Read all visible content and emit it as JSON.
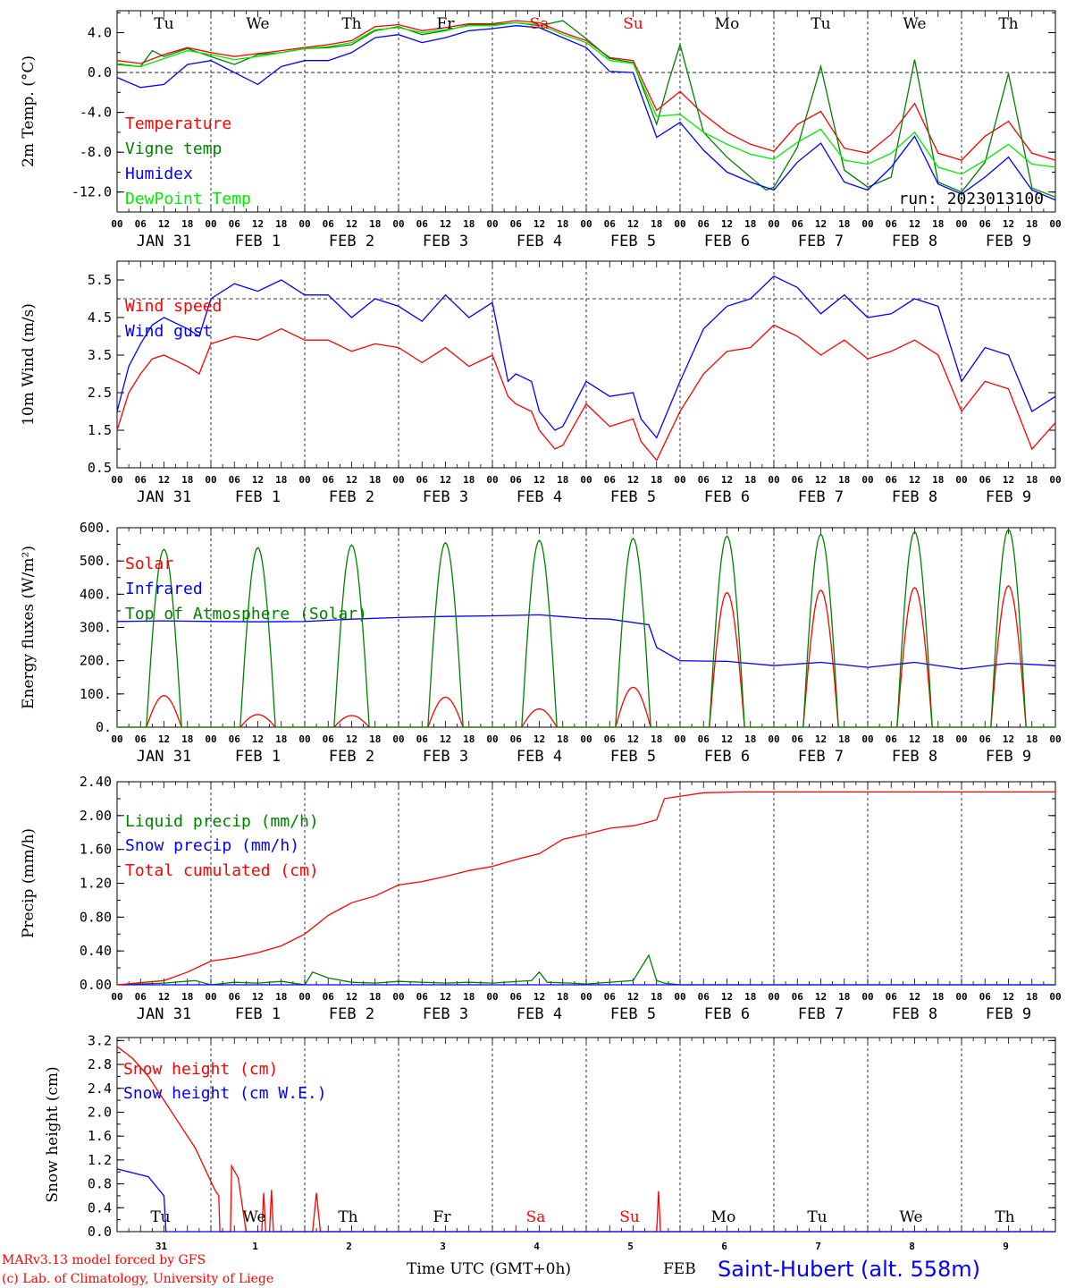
{
  "footer": {
    "model_line": "MARv3.13 model forced by GFS",
    "copyright_line": "(c) Lab. of Climatology, University of Liege",
    "time_axis_label": "Time UTC (GMT+0h)",
    "month_label": "FEB",
    "station": "Saint-Hubert (alt. 558m)"
  },
  "run_label": "run: 2023013100",
  "day_names": [
    "Tu",
    "We",
    "Th",
    "Fr",
    "Sa",
    "Su",
    "Mo",
    "Tu",
    "We",
    "Th"
  ],
  "weekend_color": "#ff0000",
  "hour_ticks": [
    "00",
    "06",
    "12",
    "18"
  ],
  "date_labels": [
    "JAN 31",
    "FEB  1",
    "FEB  2",
    "FEB  3",
    "FEB  4",
    "FEB  5",
    "FEB  6",
    "FEB  7",
    "FEB  8",
    "FEB  9"
  ],
  "bottom_day_numbers": [
    "31",
    "1",
    "2",
    "3",
    "4",
    "5",
    "6",
    "7",
    "8",
    "9"
  ],
  "chart_data": [
    {
      "type": "line",
      "ylabel": "2m Temp. (°C)",
      "ylim": [
        -14,
        6.2
      ],
      "yticks": [
        "4.0",
        "0.0",
        "-4.0",
        "-8.0",
        "-12.0"
      ],
      "ytick_values": [
        4,
        0,
        -4,
        -8,
        -12
      ],
      "ref_line": 0,
      "x_unit": "hours from 2023-01-31 00 UTC",
      "xlim": [
        0,
        240
      ],
      "series": [
        {
          "name": "Temperature",
          "color": "#ff0000",
          "x": [
            0,
            6,
            12,
            18,
            24,
            30,
            36,
            42,
            48,
            54,
            60,
            66,
            72,
            78,
            84,
            90,
            96,
            102,
            108,
            114,
            120,
            126,
            132,
            138,
            144,
            150,
            156,
            162,
            168,
            174,
            180,
            186,
            192,
            198,
            204,
            210,
            216,
            222,
            228,
            234,
            240
          ],
          "values": [
            1.2,
            0.9,
            1.8,
            2.5,
            2.0,
            1.6,
            1.9,
            2.2,
            2.5,
            2.8,
            3.2,
            4.6,
            4.8,
            4.2,
            4.5,
            4.9,
            4.9,
            5.2,
            5.0,
            4.0,
            3.2,
            1.5,
            1.2,
            -3.8,
            -1.9,
            -4.2,
            -6.0,
            -7.2,
            -7.9,
            -5.2,
            -3.9,
            -7.6,
            -8.1,
            -6.2,
            -3.1,
            -8.1,
            -8.8,
            -6.4,
            -4.9,
            -8.1,
            -8.8
          ]
        },
        {
          "name": "Vigne temp",
          "color": "#008000",
          "x": [
            0,
            6,
            9,
            12,
            18,
            24,
            30,
            36,
            42,
            48,
            54,
            60,
            66,
            72,
            78,
            84,
            90,
            96,
            102,
            108,
            114,
            120,
            126,
            132,
            138,
            141,
            144,
            150,
            156,
            162,
            166,
            168,
            174,
            180,
            186,
            192,
            198,
            204,
            210,
            216,
            222,
            228,
            234,
            240
          ],
          "values": [
            0.8,
            0.6,
            2.2,
            1.6,
            2.4,
            1.6,
            0.8,
            1.8,
            2.0,
            2.4,
            2.5,
            2.8,
            4.2,
            4.6,
            3.8,
            4.2,
            4.8,
            4.8,
            5.0,
            4.7,
            5.2,
            3.4,
            1.4,
            1.0,
            -5.2,
            -1.0,
            2.8,
            -6.0,
            -8.5,
            -10.5,
            -11.8,
            -11.5,
            -7.5,
            0.6,
            -9.8,
            -11.5,
            -10.5,
            1.3,
            -11.0,
            -12.0,
            -9.0,
            -0.1,
            -11.6,
            -12.5
          ]
        },
        {
          "name": "Humidex",
          "color": "#0000ff",
          "x": [
            0,
            6,
            12,
            18,
            24,
            30,
            36,
            42,
            48,
            54,
            60,
            66,
            72,
            78,
            84,
            90,
            96,
            102,
            108,
            114,
            120,
            126,
            132,
            138,
            144,
            150,
            156,
            162,
            168,
            174,
            180,
            186,
            192,
            198,
            204,
            210,
            216,
            222,
            228,
            234,
            240
          ],
          "values": [
            -0.5,
            -1.5,
            -1.2,
            0.8,
            1.2,
            0.0,
            -1.2,
            0.6,
            1.2,
            1.2,
            2.0,
            3.5,
            3.8,
            3.0,
            3.5,
            4.2,
            4.4,
            4.7,
            4.5,
            3.5,
            2.5,
            0.1,
            0.0,
            -6.5,
            -5.0,
            -7.8,
            -10.0,
            -11.0,
            -11.8,
            -9.0,
            -7.1,
            -11.0,
            -11.8,
            -9.5,
            -6.4,
            -11.2,
            -12.2,
            -10.5,
            -8.5,
            -11.8,
            -12.8
          ]
        },
        {
          "name": "DewPoint Temp",
          "color": "#00ee00",
          "x": [
            0,
            6,
            12,
            18,
            24,
            30,
            36,
            42,
            48,
            54,
            60,
            66,
            72,
            78,
            84,
            90,
            96,
            102,
            108,
            114,
            120,
            126,
            132,
            138,
            144,
            150,
            156,
            162,
            168,
            174,
            180,
            186,
            192,
            198,
            204,
            210,
            216,
            222,
            228,
            234,
            240
          ],
          "values": [
            0.9,
            0.6,
            1.4,
            2.2,
            1.8,
            1.3,
            1.6,
            2.0,
            2.4,
            2.6,
            3.0,
            4.3,
            4.5,
            4.0,
            4.3,
            4.7,
            4.7,
            5.0,
            4.8,
            3.8,
            3.0,
            1.2,
            0.9,
            -4.4,
            -4.2,
            -6.0,
            -7.2,
            -8.2,
            -8.7,
            -7.0,
            -5.7,
            -8.8,
            -9.2,
            -8.1,
            -6.0,
            -9.5,
            -10.2,
            -8.8,
            -7.2,
            -9.2,
            -9.5
          ]
        }
      ]
    },
    {
      "type": "line",
      "ylabel": "10m Wind (m/s)",
      "ylim": [
        0.5,
        6.0
      ],
      "yticks": [
        "5.5",
        "4.5",
        "3.5",
        "2.5",
        "1.5",
        "0.5"
      ],
      "ytick_values": [
        5.5,
        4.5,
        3.5,
        2.5,
        1.5,
        0.5
      ],
      "ref_line": 5.0,
      "xlim": [
        0,
        240
      ],
      "series": [
        {
          "name": "Wind speed",
          "color": "#ff0000",
          "x": [
            0,
            3,
            6,
            9,
            12,
            18,
            21,
            24,
            30,
            36,
            42,
            48,
            54,
            60,
            66,
            72,
            78,
            84,
            90,
            96,
            100,
            102,
            106,
            108,
            112,
            114,
            120,
            126,
            132,
            134,
            138,
            144,
            150,
            156,
            162,
            168,
            174,
            180,
            186,
            192,
            198,
            204,
            210,
            216,
            222,
            228,
            234,
            240
          ],
          "values": [
            1.5,
            2.5,
            3.0,
            3.4,
            3.5,
            3.2,
            3.0,
            3.8,
            4.0,
            3.9,
            4.2,
            3.9,
            3.9,
            3.6,
            3.8,
            3.7,
            3.3,
            3.7,
            3.2,
            3.5,
            2.4,
            2.2,
            2.0,
            1.5,
            1.0,
            1.1,
            2.2,
            1.6,
            1.8,
            1.2,
            0.7,
            2.0,
            3.0,
            3.6,
            3.7,
            4.3,
            4.0,
            3.5,
            3.9,
            3.4,
            3.6,
            3.9,
            3.5,
            2.0,
            2.8,
            2.6,
            1.0,
            1.7
          ]
        },
        {
          "name": "Wind gust",
          "color": "#0000ff",
          "x": [
            0,
            3,
            6,
            9,
            12,
            18,
            21,
            24,
            30,
            36,
            42,
            48,
            54,
            60,
            66,
            72,
            78,
            84,
            90,
            96,
            100,
            102,
            106,
            108,
            112,
            114,
            120,
            126,
            132,
            134,
            138,
            144,
            150,
            156,
            162,
            168,
            174,
            180,
            186,
            192,
            198,
            204,
            210,
            216,
            222,
            228,
            234,
            240
          ],
          "values": [
            2.0,
            3.2,
            3.8,
            4.3,
            4.5,
            4.2,
            4.0,
            5.0,
            5.4,
            5.2,
            5.5,
            5.1,
            5.1,
            4.5,
            5.0,
            4.8,
            4.4,
            5.1,
            4.5,
            4.9,
            2.8,
            3.0,
            2.8,
            2.0,
            1.5,
            1.6,
            2.8,
            2.4,
            2.5,
            1.8,
            1.3,
            2.8,
            4.2,
            4.8,
            5.0,
            5.6,
            5.3,
            4.6,
            5.1,
            4.5,
            4.6,
            5.0,
            4.8,
            2.8,
            3.7,
            3.5,
            2.0,
            2.4
          ]
        }
      ]
    },
    {
      "type": "line",
      "ylabel": "Energy fluxes (W/m²)",
      "ylim": [
        0,
        600
      ],
      "yticks": [
        "600.",
        "500.",
        "400.",
        "300.",
        "200.",
        "100.",
        "0."
      ],
      "ytick_values": [
        600,
        500,
        400,
        300,
        200,
        100,
        0
      ],
      "xlim": [
        0,
        240
      ],
      "series": [
        {
          "name": "Solar",
          "color": "#ff0000",
          "kind": "daily_bell",
          "sunrise_h": 7.5,
          "sunset_h": 16.5,
          "peaks": [
            95,
            38,
            35,
            90,
            55,
            120,
            405,
            412,
            420,
            425
          ]
        },
        {
          "name": "Infrared",
          "color": "#0000ff",
          "x": [
            0,
            12,
            24,
            36,
            48,
            60,
            72,
            84,
            96,
            108,
            120,
            126,
            136,
            138,
            144,
            156,
            168,
            180,
            192,
            204,
            216,
            228,
            240
          ],
          "values": [
            318,
            320,
            318,
            317,
            318,
            325,
            330,
            333,
            335,
            338,
            327,
            325,
            308,
            240,
            200,
            198,
            185,
            195,
            180,
            195,
            175,
            192,
            185
          ]
        },
        {
          "name": "Top of Atmosphere (Solar)",
          "color": "#008000",
          "kind": "daily_bell",
          "sunrise_h": 7.5,
          "sunset_h": 16.5,
          "peaks": [
            535,
            540,
            548,
            555,
            562,
            568,
            575,
            580,
            588,
            595
          ]
        }
      ]
    },
    {
      "type": "line",
      "ylabel": "Precip (mm/h)",
      "ylim": [
        0,
        2.4
      ],
      "yticks": [
        "2.40",
        "2.00",
        "1.60",
        "1.20",
        "0.80",
        "0.40",
        "0.00"
      ],
      "ytick_values": [
        2.4,
        2.0,
        1.6,
        1.2,
        0.8,
        0.4,
        0.0
      ],
      "xlim": [
        0,
        240
      ],
      "series": [
        {
          "name": "Liquid precip (mm/h)",
          "color": "#008000",
          "x": [
            0,
            12,
            20,
            24,
            30,
            36,
            42,
            48,
            50,
            54,
            60,
            66,
            72,
            84,
            90,
            96,
            106,
            108,
            110,
            116,
            120,
            132,
            136,
            138,
            140,
            144,
            150,
            240
          ],
          "values": [
            0.0,
            0.02,
            0.05,
            0.0,
            0.03,
            0.02,
            0.04,
            0.0,
            0.15,
            0.08,
            0.03,
            0.02,
            0.04,
            0.02,
            0.03,
            0.02,
            0.05,
            0.15,
            0.03,
            0.02,
            0.01,
            0.05,
            0.35,
            0.05,
            0.02,
            0.0,
            0.0,
            0.0
          ]
        },
        {
          "name": "Snow precip (mm/h)",
          "color": "#0000ff",
          "x": [
            0,
            240
          ],
          "values": [
            0.0,
            0.0
          ]
        },
        {
          "name": "Total cumulated (cm)",
          "color": "#ff0000",
          "x": [
            0,
            12,
            18,
            24,
            30,
            36,
            42,
            48,
            54,
            60,
            66,
            72,
            78,
            84,
            90,
            96,
            102,
            108,
            114,
            120,
            126,
            132,
            134,
            138,
            140,
            150,
            160,
            240
          ],
          "values": [
            0.0,
            0.05,
            0.15,
            0.28,
            0.32,
            0.38,
            0.46,
            0.6,
            0.82,
            0.97,
            1.05,
            1.18,
            1.22,
            1.28,
            1.35,
            1.4,
            1.48,
            1.55,
            1.72,
            1.78,
            1.85,
            1.88,
            1.9,
            1.95,
            2.2,
            2.27,
            2.28,
            2.28
          ]
        }
      ]
    },
    {
      "type": "line",
      "ylabel": "Snow height (cm)",
      "ylim": [
        0,
        3.25
      ],
      "yticks": [
        "3.2",
        "2.8",
        "2.4",
        "2.0",
        "1.6",
        "1.2",
        "0.8",
        "0.4",
        "0.0"
      ],
      "ytick_values": [
        3.2,
        2.8,
        2.4,
        2.0,
        1.6,
        1.2,
        0.8,
        0.4,
        0.0
      ],
      "xlim": [
        0,
        240
      ],
      "series": [
        {
          "name": "Snow height (cm)",
          "color": "#ff0000",
          "x": [
            0,
            4,
            8,
            12,
            16,
            20,
            25,
            26,
            26.3,
            29,
            29.3,
            31,
            33,
            33.3,
            37,
            37.5,
            38,
            39,
            39.5,
            40,
            50,
            51,
            52,
            138,
            138.5,
            139,
            240
          ],
          "values": [
            3.1,
            2.9,
            2.6,
            2.2,
            1.8,
            1.4,
            0.7,
            0.6,
            0.0,
            0.0,
            1.1,
            0.9,
            0.0,
            0.0,
            0.0,
            0.65,
            0.0,
            0.0,
            0.7,
            0.0,
            0.0,
            0.65,
            0.0,
            0.0,
            0.68,
            0.0,
            0.0
          ]
        },
        {
          "name": "Snow height (cm W.E.)",
          "color": "#0000ff",
          "x": [
            0,
            8,
            12,
            12.5,
            240
          ],
          "values": [
            1.05,
            0.92,
            0.6,
            0.0,
            0.0
          ]
        }
      ]
    }
  ]
}
